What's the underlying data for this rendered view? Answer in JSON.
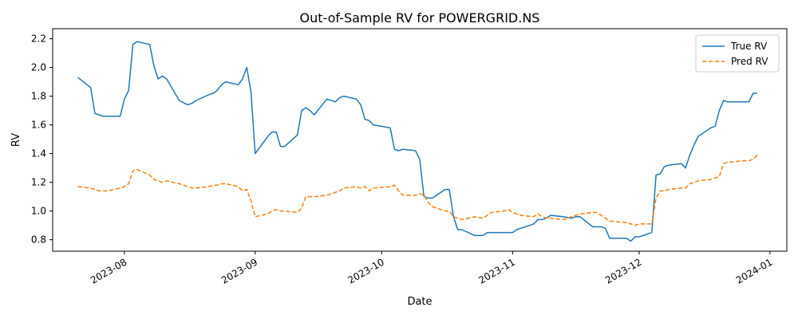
{
  "chart_data": {
    "type": "line",
    "title": "Out-of-Sample RV for POWERGRID.NS",
    "xlabel": "Date",
    "ylabel": "RV",
    "xlim": [
      "2023-07-15",
      "2024-01-05"
    ],
    "ylim": [
      0.72,
      2.27
    ],
    "x_ticks": [
      "2023-08-01",
      "2023-09-01",
      "2023-10-01",
      "2023-11-01",
      "2023-12-01",
      "2024-01-01"
    ],
    "x_tick_labels": [
      "2023-08",
      "2023-09",
      "2023-10",
      "2023-11",
      "2023-12",
      "2024-01"
    ],
    "y_ticks": [
      0.8,
      1.0,
      1.2,
      1.4,
      1.6,
      1.8,
      2.0,
      2.2
    ],
    "y_tick_labels": [
      "0.8",
      "1.0",
      "1.2",
      "1.4",
      "1.6",
      "1.8",
      "2.0",
      "2.2"
    ],
    "grid": false,
    "legend_position": "top-right",
    "x": [
      "2023-07-21",
      "2023-07-24",
      "2023-07-25",
      "2023-07-26",
      "2023-07-27",
      "2023-07-28",
      "2023-07-31",
      "2023-08-01",
      "2023-08-02",
      "2023-08-03",
      "2023-08-04",
      "2023-08-07",
      "2023-08-08",
      "2023-08-09",
      "2023-08-10",
      "2023-08-11",
      "2023-08-14",
      "2023-08-16",
      "2023-08-17",
      "2023-08-18",
      "2023-08-21",
      "2023-08-22",
      "2023-08-23",
      "2023-08-24",
      "2023-08-25",
      "2023-08-28",
      "2023-08-29",
      "2023-08-30",
      "2023-08-31",
      "2023-09-01",
      "2023-09-04",
      "2023-09-05",
      "2023-09-06",
      "2023-09-07",
      "2023-09-08",
      "2023-09-11",
      "2023-09-12",
      "2023-09-13",
      "2023-09-14",
      "2023-09-15",
      "2023-09-18",
      "2023-09-20",
      "2023-09-21",
      "2023-09-22",
      "2023-09-25",
      "2023-09-26",
      "2023-09-27",
      "2023-09-28",
      "2023-09-29",
      "2023-10-03",
      "2023-10-04",
      "2023-10-05",
      "2023-10-06",
      "2023-10-09",
      "2023-10-10",
      "2023-10-11",
      "2023-10-12",
      "2023-10-13",
      "2023-10-16",
      "2023-10-17",
      "2023-10-18",
      "2023-10-19",
      "2023-10-20",
      "2023-10-23",
      "2023-10-25",
      "2023-10-26",
      "2023-10-27",
      "2023-10-30",
      "2023-10-31",
      "2023-11-01",
      "2023-11-02",
      "2023-11-03",
      "2023-11-06",
      "2023-11-07",
      "2023-11-08",
      "2023-11-09",
      "2023-11-10",
      "2023-11-13",
      "2023-11-15",
      "2023-11-16",
      "2023-11-17",
      "2023-11-20",
      "2023-11-21",
      "2023-11-22",
      "2023-11-23",
      "2023-11-24",
      "2023-11-28",
      "2023-11-29",
      "2023-11-30",
      "2023-12-01",
      "2023-12-04",
      "2023-12-05",
      "2023-12-06",
      "2023-12-07",
      "2023-12-08",
      "2023-12-11",
      "2023-12-12",
      "2023-12-13",
      "2023-12-14",
      "2023-12-15",
      "2023-12-18",
      "2023-12-19",
      "2023-12-20",
      "2023-12-21",
      "2023-12-22",
      "2023-12-26",
      "2023-12-27",
      "2023-12-28",
      "2023-12-29"
    ],
    "series": [
      {
        "name": "True RV",
        "color": "#1f77b4",
        "linestyle": "solid",
        "values": [
          1.93,
          1.86,
          1.68,
          1.67,
          1.66,
          1.66,
          1.66,
          1.78,
          1.84,
          2.16,
          2.18,
          2.16,
          2.01,
          1.92,
          1.94,
          1.92,
          1.77,
          1.74,
          1.75,
          1.77,
          1.81,
          1.82,
          1.84,
          1.88,
          1.9,
          1.88,
          1.92,
          2.0,
          1.83,
          1.4,
          1.52,
          1.55,
          1.55,
          1.45,
          1.45,
          1.53,
          1.7,
          1.72,
          1.7,
          1.67,
          1.78,
          1.76,
          1.79,
          1.8,
          1.78,
          1.74,
          1.64,
          1.63,
          1.6,
          1.58,
          1.43,
          1.42,
          1.43,
          1.42,
          1.36,
          1.1,
          1.09,
          1.09,
          1.15,
          1.15,
          0.96,
          0.87,
          0.87,
          0.83,
          0.83,
          0.85,
          0.85,
          0.85,
          0.85,
          0.85,
          0.87,
          0.88,
          0.91,
          0.94,
          0.94,
          0.95,
          0.97,
          0.96,
          0.95,
          0.96,
          0.96,
          0.89,
          0.89,
          0.89,
          0.88,
          0.81,
          0.81,
          0.79,
          0.82,
          0.82,
          0.85,
          1.25,
          1.26,
          1.31,
          1.32,
          1.33,
          1.3,
          1.39,
          1.46,
          1.52,
          1.58,
          1.59,
          1.7,
          1.77,
          1.76,
          1.76,
          1.76,
          1.82,
          1.82
        ]
      },
      {
        "name": "Pred RV",
        "color": "#ff7f0e",
        "linestyle": "dashed",
        "values": [
          1.17,
          1.16,
          1.15,
          1.14,
          1.14,
          1.14,
          1.16,
          1.17,
          1.19,
          1.28,
          1.29,
          1.25,
          1.22,
          1.21,
          1.2,
          1.21,
          1.19,
          1.17,
          1.16,
          1.16,
          1.17,
          1.18,
          1.18,
          1.19,
          1.19,
          1.17,
          1.14,
          1.15,
          1.07,
          0.96,
          0.98,
          1.0,
          1.01,
          1.0,
          1.0,
          0.99,
          1.02,
          1.1,
          1.1,
          1.1,
          1.11,
          1.13,
          1.14,
          1.16,
          1.17,
          1.16,
          1.17,
          1.14,
          1.16,
          1.17,
          1.18,
          1.14,
          1.11,
          1.11,
          1.12,
          1.11,
          1.06,
          1.03,
          1.0,
          1.0,
          0.96,
          0.95,
          0.94,
          0.96,
          0.95,
          0.97,
          0.99,
          1.0,
          1.01,
          0.99,
          0.98,
          0.97,
          0.96,
          0.98,
          0.96,
          0.95,
          0.95,
          0.94,
          0.96,
          0.97,
          0.98,
          0.99,
          0.99,
          0.97,
          0.95,
          0.93,
          0.92,
          0.91,
          0.9,
          0.91,
          0.91,
          1.09,
          1.14,
          1.14,
          1.15,
          1.16,
          1.16,
          1.19,
          1.2,
          1.21,
          1.22,
          1.23,
          1.24,
          1.33,
          1.34,
          1.35,
          1.35,
          1.36,
          1.39
        ]
      }
    ]
  }
}
